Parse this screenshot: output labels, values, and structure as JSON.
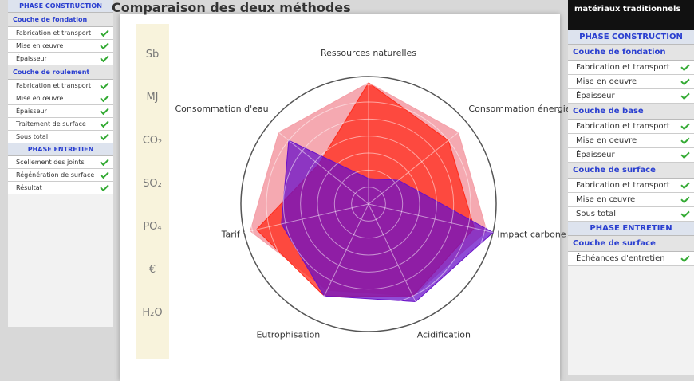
{
  "title": "Comparaison des deux méthodes",
  "left": {
    "sections": [
      {
        "title": "PHASE CONSTRUCTION",
        "groups": [
          {
            "title": "Couche de fondation",
            "items": [
              "Fabrication et transport",
              "Mise en œuvre",
              "Épaisseur"
            ]
          },
          {
            "title": "Couche de roulement",
            "items": [
              "Fabrication et transport",
              "Mise en œuvre",
              "Épaisseur",
              "Traitement de surface",
              "Sous total"
            ]
          }
        ]
      },
      {
        "title": "PHASE ENTRETIEN",
        "groups": [
          {
            "items": [
              "Scellement des joints",
              "Régénération de surface",
              "Résultat"
            ]
          }
        ]
      }
    ]
  },
  "units": [
    "Sb",
    "MJ",
    "CO₂",
    "SO₂",
    "PO₄",
    "€",
    "H₂O"
  ],
  "chart_data": {
    "type": "radar",
    "axes": [
      "Ressources naturelles",
      "Consommation énergie",
      "Impact carbone",
      "Acidification",
      "Eutrophisation",
      "Tarif",
      "Consommation d'eau"
    ],
    "rlim": [
      0,
      10
    ],
    "series": [
      {
        "color": "#f4a0a8",
        "values": [
          9.5,
          9,
          9.5,
          8,
          7.5,
          9.5,
          9
        ]
      },
      {
        "color": "#ff2a1a",
        "values": [
          9.5,
          8,
          8.5,
          8,
          8,
          9,
          5
        ]
      },
      {
        "color": "#6a10c8",
        "values": [
          2,
          3,
          10,
          8.5,
          8,
          7,
          8
        ]
      }
    ]
  },
  "right": {
    "title": "matériaux traditionnels",
    "sections": [
      {
        "title": "PHASE CONSTRUCTION",
        "groups": [
          {
            "title": "Couche de fondation",
            "items": [
              "Fabrication et transport",
              "Mise en oeuvre",
              "Épaisseur"
            ]
          },
          {
            "title": "Couche de base",
            "items": [
              "Fabrication et transport",
              "Mise en oeuvre",
              "Épaisseur"
            ]
          },
          {
            "title": "Couche de surface",
            "items": [
              "Fabrication et transport",
              "Mise en œuvre",
              "Sous total"
            ]
          }
        ]
      },
      {
        "title": "PHASE ENTRETIEN",
        "groups": [
          {
            "title": "Couche de surface",
            "items": [
              "Échéances d'entretien"
            ]
          }
        ]
      }
    ]
  }
}
